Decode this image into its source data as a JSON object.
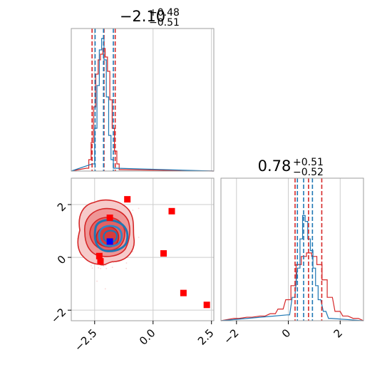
{
  "colors": {
    "red": "#d62728",
    "blue": "#1f77b4",
    "marker_red": "#ff0000",
    "marker_blue": "#0000ff",
    "grid": "#cccccc",
    "spine": "#9e9e9e"
  },
  "chart_data": [
    {
      "type": "line",
      "panel": "top-left marginal histogram",
      "title": {
        "value": "−2.10",
        "sup": "+0.48",
        "sub": "−0.51"
      },
      "xlim": [
        -3.5,
        2.6
      ],
      "grid": true,
      "series": [
        {
          "color": "#d62728",
          "x": [
            -2.8,
            -2.7,
            -2.6,
            -2.5,
            -2.4,
            -2.3,
            -2.2,
            -2.1,
            -2.0,
            -1.9,
            -1.8,
            -1.7,
            -1.6,
            -1.5,
            -1.4
          ],
          "y": [
            0.02,
            0.08,
            0.2,
            0.45,
            0.68,
            0.78,
            0.82,
            0.86,
            0.8,
            0.7,
            0.5,
            0.3,
            0.14,
            0.05,
            0.01
          ],
          "quantiles": [
            -2.61,
            -2.1,
            -1.62
          ]
        },
        {
          "color": "#1f77b4",
          "x": [
            -2.55,
            -2.45,
            -2.35,
            -2.25,
            -2.15,
            -2.05,
            -1.95,
            -1.85,
            -1.75,
            -1.65
          ],
          "y": [
            0.05,
            0.3,
            0.6,
            0.85,
            0.93,
            0.78,
            0.52,
            0.25,
            0.08,
            0.02
          ],
          "quantiles": [
            -2.48,
            -2.12,
            -1.7
          ]
        }
      ]
    },
    {
      "type": "line",
      "panel": "bottom-right marginal histogram",
      "title": {
        "value": "0.78",
        "sup": "+0.51",
        "sub": "−0.52"
      },
      "xlim": [
        -2.6,
        2.9
      ],
      "xticks": [
        "−2",
        "0",
        "2"
      ],
      "grid": true,
      "series": [
        {
          "color": "#d62728",
          "x": [
            -2.0,
            -1.5,
            -1.0,
            -0.6,
            -0.3,
            0.0,
            0.2,
            0.4,
            0.6,
            0.8,
            1.0,
            1.2,
            1.4,
            1.6,
            1.9,
            2.2,
            2.6
          ],
          "y": [
            0.02,
            0.03,
            0.04,
            0.06,
            0.1,
            0.18,
            0.3,
            0.48,
            0.55,
            0.58,
            0.55,
            0.48,
            0.35,
            0.2,
            0.08,
            0.04,
            0.02
          ],
          "quantiles": [
            0.26,
            0.78,
            1.29
          ]
        },
        {
          "color": "#1f77b4",
          "x": [
            0.0,
            0.2,
            0.4,
            0.5,
            0.6,
            0.7,
            0.8,
            0.9,
            1.0,
            1.1,
            1.2,
            1.4,
            1.6
          ],
          "y": [
            0.05,
            0.2,
            0.45,
            0.7,
            0.9,
            0.85,
            0.7,
            0.6,
            0.45,
            0.3,
            0.18,
            0.08,
            0.02
          ],
          "quantiles": [
            0.35,
            0.59,
            0.93
          ]
        }
      ]
    },
    {
      "type": "scatter",
      "panel": "bottom-left 2D density",
      "xlim": [
        -3.5,
        2.6
      ],
      "ylim": [
        -2.4,
        3.0
      ],
      "xticks": [
        "−2.5",
        "0.0",
        "2.5"
      ],
      "yticks": [
        "−2",
        "0",
        "2"
      ],
      "grid": true,
      "points": [
        {
          "x": -2.3,
          "y": 0.05,
          "color": "#ff0000"
        },
        {
          "x": -2.25,
          "y": -0.15,
          "color": "#ff0000"
        },
        {
          "x": -1.85,
          "y": 1.5,
          "color": "#ff0000"
        },
        {
          "x": -1.1,
          "y": 2.2,
          "color": "#ff0000"
        },
        {
          "x": 0.8,
          "y": 1.75,
          "color": "#ff0000"
        },
        {
          "x": 0.45,
          "y": 0.15,
          "color": "#ff0000"
        },
        {
          "x": 1.3,
          "y": -1.35,
          "color": "#ff0000"
        },
        {
          "x": 2.3,
          "y": -1.8,
          "color": "#ff0000"
        },
        {
          "x": -1.85,
          "y": 0.6,
          "color": "#0000ff"
        }
      ]
    }
  ]
}
